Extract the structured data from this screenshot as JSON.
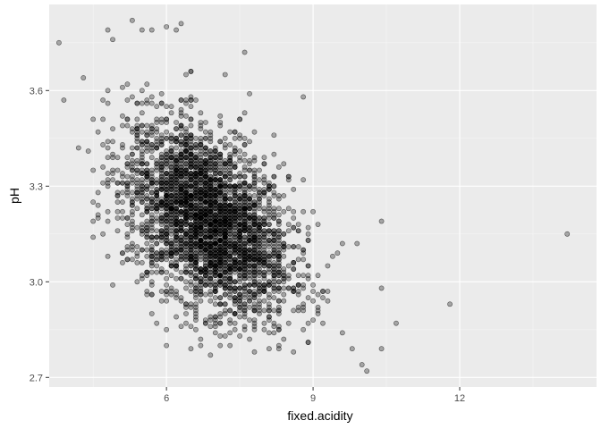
{
  "chart_data": {
    "type": "scatter",
    "title": "",
    "xlabel": "fixed.acidity",
    "ylabel": "pH",
    "xlim": [
      3.6,
      14.8
    ],
    "ylim": [
      2.67,
      3.87
    ],
    "x_ticks": [
      6,
      9,
      12
    ],
    "x_tick_labels": [
      "6",
      "9",
      "12"
    ],
    "y_ticks": [
      2.7,
      3.0,
      3.3,
      3.6
    ],
    "y_tick_labels": [
      "2.7",
      "3.0",
      "3.3",
      "3.6"
    ],
    "grid": true,
    "legend": "none",
    "colors": {
      "panel_background": "#ebebeb",
      "grid_major": "#ffffff",
      "point_fill": "#000000",
      "point_fill_opacity": 0.3,
      "tick_mark": "#333333"
    },
    "points_sample": [
      [
        3.8,
        3.75
      ],
      [
        3.9,
        3.57
      ],
      [
        4.2,
        3.42
      ],
      [
        4.3,
        3.64
      ],
      [
        4.4,
        3.41
      ],
      [
        4.6,
        3.47
      ],
      [
        4.8,
        3.79
      ],
      [
        4.9,
        3.76
      ],
      [
        5.0,
        3.28
      ],
      [
        5.1,
        3.06
      ],
      [
        5.2,
        3.07
      ],
      [
        5.3,
        3.82
      ],
      [
        5.5,
        3.79
      ],
      [
        5.7,
        3.79
      ],
      [
        6.0,
        3.8
      ],
      [
        6.2,
        3.79
      ],
      [
        6.3,
        3.81
      ],
      [
        6.4,
        3.65
      ],
      [
        7.6,
        3.72
      ],
      [
        7.7,
        3.59
      ],
      [
        8.4,
        3.37
      ],
      [
        8.8,
        3.58
      ],
      [
        9.0,
        3.22
      ],
      [
        9.3,
        3.05
      ],
      [
        9.6,
        3.12
      ],
      [
        9.8,
        2.79
      ],
      [
        9.9,
        3.12
      ],
      [
        10.0,
        2.74
      ],
      [
        10.1,
        2.72
      ],
      [
        10.4,
        3.19
      ],
      [
        10.4,
        2.98
      ],
      [
        10.7,
        2.87
      ],
      [
        11.8,
        2.93
      ],
      [
        14.2,
        3.15
      ],
      [
        8.1,
        2.79
      ],
      [
        8.6,
        2.78
      ]
    ],
    "cluster": {
      "center_x": 6.85,
      "center_y": 3.19,
      "sd_x": 0.84,
      "sd_y": 0.15,
      "correlation": -0.43
    }
  }
}
